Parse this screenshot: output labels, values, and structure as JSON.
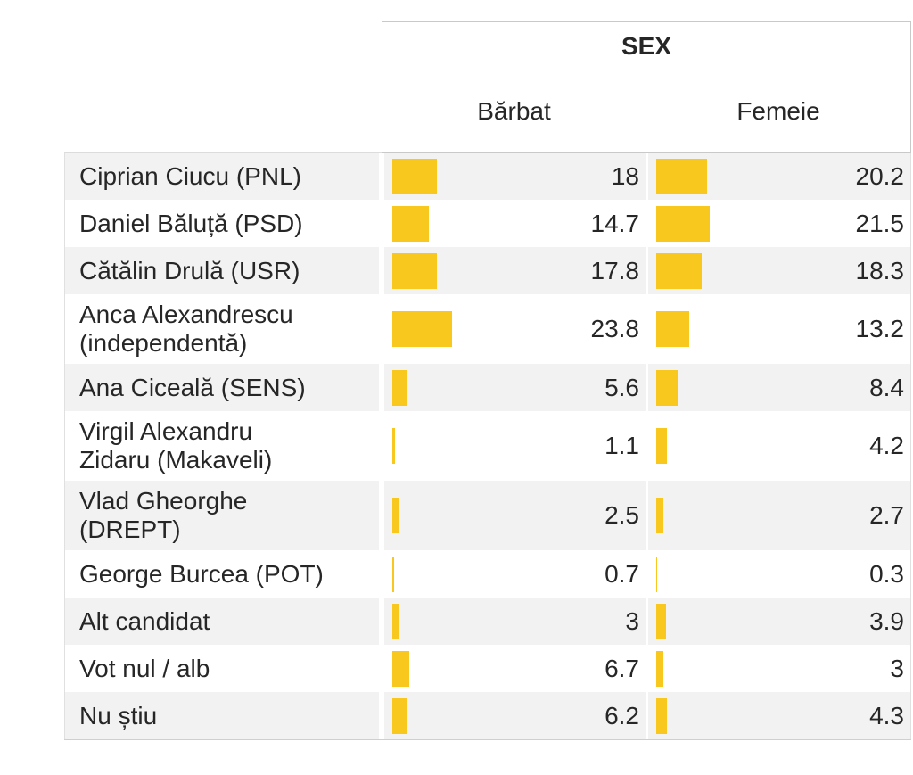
{
  "table": {
    "group_header": "SEX"
  },
  "chart_data": {
    "type": "bar",
    "title": "SEX",
    "orientation": "horizontal",
    "layout_hint": "crosstab table; one bar column per sex, value labels right-aligned, no axis shown",
    "value_range_hint": [
      0,
      25
    ],
    "categories": [
      "Ciprian Ciucu (PNL)",
      "Daniel Băluță (PSD)",
      "Cătălin Drulă (USR)",
      "Anca Alexandrescu\n(independentă)",
      "Ana Ciceală (SENS)",
      "Virgil Alexandru\nZidaru (Makaveli)",
      "Vlad Gheorghe\n(DREPT)",
      "George Burcea (POT)",
      "Alt candidat",
      "Vot nul / alb",
      "Nu știu"
    ],
    "series": [
      {
        "name": "Bărbat",
        "values": [
          18,
          14.7,
          17.8,
          23.8,
          5.6,
          1.1,
          2.5,
          0.7,
          3,
          6.7,
          6.2
        ]
      },
      {
        "name": "Femeie",
        "values": [
          20.2,
          21.5,
          18.3,
          13.2,
          8.4,
          4.2,
          2.7,
          0.3,
          3.9,
          3,
          4.3
        ]
      }
    ]
  },
  "colors": {
    "bar": "#F8C81F",
    "stripe": "#F2F2F2",
    "border": "#C9C9C9",
    "text": "#262626"
  }
}
